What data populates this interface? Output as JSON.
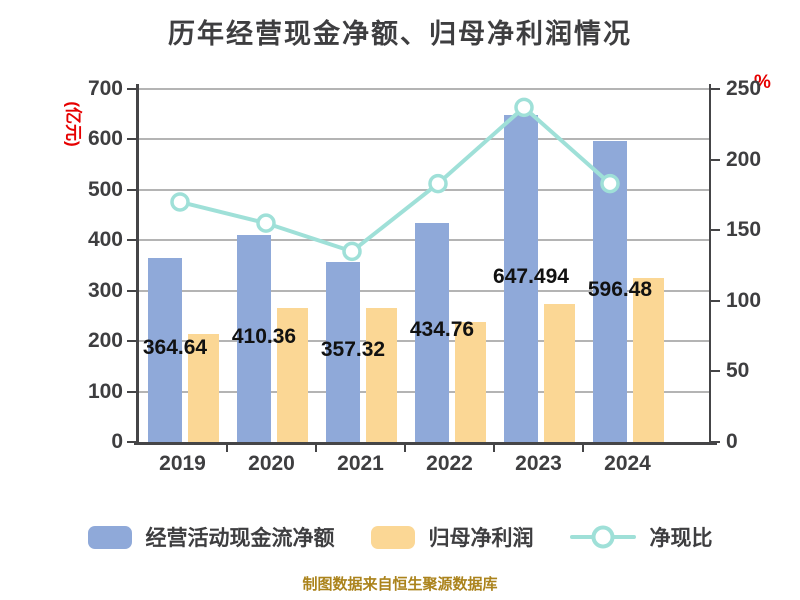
{
  "title": "历年经营现金净额、归母净利润情况",
  "footer": "制图数据来自恒生聚源数据库",
  "colors": {
    "bar_blue": "#8fa9d9",
    "bar_orange": "#fbd795",
    "line_teal": "#9fe0d8",
    "unit_red": "#e60000",
    "footer_gold": "#ab831c",
    "text_dark": "#3e3e40",
    "grid_gray": "#b4b4b4",
    "axis_dark": "#454547"
  },
  "left_axis": {
    "unit": "(亿元)",
    "ticks": [
      0,
      100,
      200,
      300,
      400,
      500,
      600,
      700
    ]
  },
  "right_axis": {
    "unit": "%",
    "ticks": [
      0,
      50,
      100,
      150,
      200,
      250
    ]
  },
  "legend": {
    "items": [
      {
        "label": "经营活动现金流净额",
        "swatch": "blue-bar"
      },
      {
        "label": "归母净利润",
        "swatch": "orange-bar"
      },
      {
        "label": "净现比",
        "swatch": "line-marker"
      }
    ]
  },
  "chart_data": {
    "type": "bar",
    "title": "历年经营现金净额、归母净利润情况",
    "categories": [
      "2019",
      "2020",
      "2021",
      "2022",
      "2023",
      "2024"
    ],
    "series": [
      {
        "name": "经营活动现金流净额",
        "type": "bar",
        "axis": "left",
        "color": "#8fa9d9",
        "values": [
          364.64,
          410.36,
          357.32,
          434.76,
          647.49,
          596.48
        ],
        "data_labels": [
          "364.64",
          "410.36",
          "357.32",
          "434.76",
          "647.494",
          "596.48"
        ]
      },
      {
        "name": "归母净利润",
        "type": "bar",
        "axis": "left",
        "color": "#fbd795",
        "values": [
          214,
          265,
          265,
          238,
          273,
          326
        ]
      },
      {
        "name": "净现比",
        "type": "line",
        "axis": "right",
        "color": "#9fe0d8",
        "values": [
          170,
          155,
          135,
          183,
          237,
          183
        ]
      }
    ],
    "ylabel_left": "(亿元)",
    "ylabel_right": "%",
    "ylim_left": [
      0,
      700
    ],
    "ylim_right": [
      0,
      250
    ],
    "grid": true,
    "legend_position": "bottom"
  }
}
